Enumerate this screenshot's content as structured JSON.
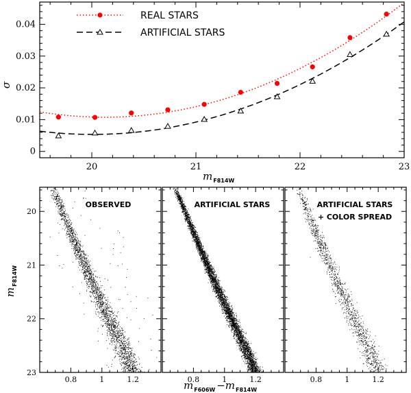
{
  "chart_data": [
    {
      "type": "scatter",
      "xlabel": {
        "main": "m",
        "sub": "F814W"
      },
      "ylabel": "σ",
      "xlim": [
        19.5,
        23.0
      ],
      "ylim": [
        -0.002,
        0.047
      ],
      "xticks": [
        "20",
        "21",
        "22",
        "23"
      ],
      "yticks": [
        "0",
        "0.01",
        "0.02",
        "0.03",
        "0.04"
      ],
      "legend_position": "top-left",
      "series": [
        {
          "name": "REAL STARS",
          "marker": "filled-circle",
          "line": "dotted",
          "color": "#ff0000",
          "x": [
            19.68,
            20.03,
            20.38,
            20.73,
            21.08,
            21.43,
            21.78,
            22.12,
            22.48,
            22.83
          ],
          "y": [
            0.0108,
            0.0107,
            0.0121,
            0.0131,
            0.0148,
            0.0186,
            0.0214,
            0.0266,
            0.0358,
            0.0432
          ]
        },
        {
          "name": "ARTIFICIAL STARS",
          "marker": "open-triangle",
          "line": "dashed",
          "color": "#000000",
          "x": [
            19.68,
            20.03,
            20.38,
            20.73,
            21.08,
            21.43,
            21.78,
            22.12,
            22.48,
            22.83
          ],
          "y": [
            0.0049,
            0.0058,
            0.0066,
            0.0079,
            0.0101,
            0.0127,
            0.0172,
            0.0221,
            0.0305,
            0.0369
          ]
        }
      ]
    },
    {
      "type": "scatter",
      "title": "OBSERVED",
      "xlabel": {
        "main": "m",
        "sub1": "F606W",
        "sep": "−m",
        "sub2": "F814W"
      },
      "ylabel": {
        "main": "m",
        "sub": "F814W"
      },
      "xlim": [
        0.6,
        1.38
      ],
      "ylim": [
        23.0,
        19.55
      ],
      "xticks": [
        "0.8",
        "1",
        "1.2"
      ],
      "yticks": [
        "20",
        "21",
        "22",
        "23"
      ],
      "points": "dense black point cloud tracing the main-sequence ridge"
    },
    {
      "type": "scatter",
      "title": "ARTIFICIAL STARS",
      "xlim": [
        0.6,
        1.38
      ],
      "ylim": [
        23.0,
        19.55
      ],
      "xticks": [
        "0.8",
        "1",
        "1.2"
      ]
    },
    {
      "type": "scatter",
      "title": "ARTIFICIAL STARS",
      "title_line2": "+ COLOR SPREAD",
      "xlim": [
        0.6,
        1.38
      ],
      "ylim": [
        23.0,
        19.55
      ],
      "xticks": [
        "0.8",
        "1",
        "1.2"
      ]
    }
  ],
  "ridge": {
    "mag": [
      19.55,
      20.0,
      20.5,
      21.0,
      21.5,
      22.0,
      22.5,
      23.0
    ],
    "color": [
      0.68,
      0.745,
      0.815,
      0.89,
      0.965,
      1.045,
      1.125,
      1.2
    ]
  }
}
